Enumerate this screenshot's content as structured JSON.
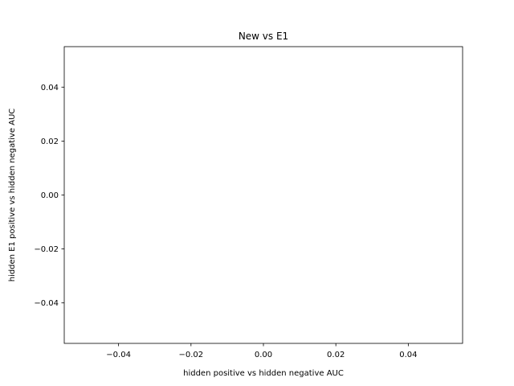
{
  "chart_data": {
    "type": "scatter",
    "title": "New vs E1",
    "xlabel": "hidden positive vs hidden negative  AUC",
    "ylabel": "hidden E1 positive vs hidden negative  AUC",
    "xlim": [
      -0.055,
      0.055
    ],
    "ylim": [
      -0.055,
      0.055
    ],
    "xticks": [
      -0.04,
      -0.02,
      0.0,
      0.02,
      0.04
    ],
    "yticks": [
      -0.04,
      -0.02,
      0.0,
      0.02,
      0.04
    ],
    "xtick_labels": [
      "−0.04",
      "−0.02",
      "0.00",
      "0.02",
      "0.04"
    ],
    "ytick_labels": [
      "−0.04",
      "−0.02",
      "0.00",
      "0.02",
      "0.04"
    ],
    "grid": false,
    "series": [
      {
        "x": [],
        "y": []
      }
    ]
  }
}
